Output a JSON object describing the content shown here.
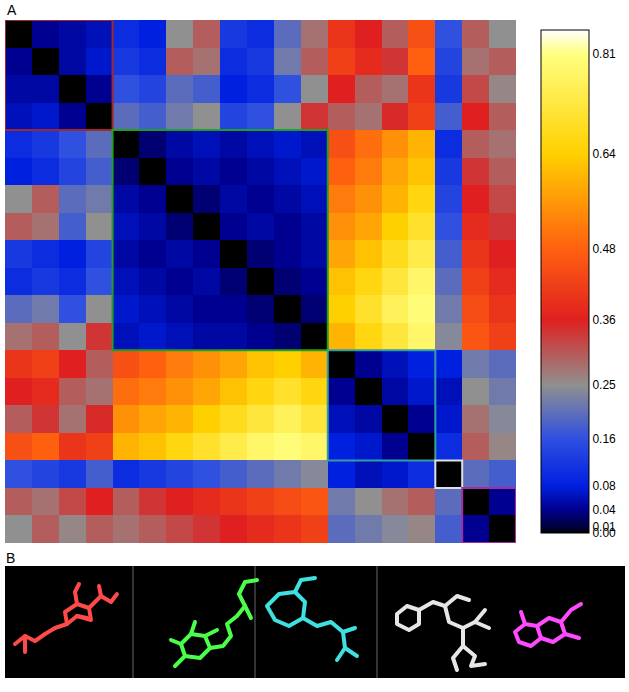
{
  "chart_data": {
    "type": "heatmap",
    "annotations": [
      "A",
      "B"
    ],
    "tick_labels": false,
    "cells": [
      [
        0.0,
        0.04,
        0.05,
        0.06,
        0.1,
        0.08,
        0.25,
        0.3,
        0.12,
        0.1,
        0.2,
        0.28,
        0.4,
        0.36,
        0.3,
        0.45,
        0.16,
        0.3,
        0.25
      ],
      [
        0.04,
        0.0,
        0.05,
        0.07,
        0.12,
        0.1,
        0.3,
        0.28,
        0.1,
        0.12,
        0.22,
        0.3,
        0.42,
        0.38,
        0.34,
        0.48,
        0.14,
        0.28,
        0.3
      ],
      [
        0.05,
        0.05,
        0.0,
        0.04,
        0.16,
        0.14,
        0.2,
        0.18,
        0.08,
        0.1,
        0.16,
        0.25,
        0.36,
        0.3,
        0.28,
        0.4,
        0.12,
        0.32,
        0.26
      ],
      [
        0.06,
        0.07,
        0.04,
        0.0,
        0.2,
        0.18,
        0.22,
        0.25,
        0.14,
        0.16,
        0.25,
        0.34,
        0.3,
        0.28,
        0.35,
        0.42,
        0.18,
        0.36,
        0.3
      ],
      [
        0.1,
        0.12,
        0.16,
        0.2,
        0.0,
        0.03,
        0.05,
        0.06,
        0.05,
        0.06,
        0.07,
        0.06,
        0.45,
        0.5,
        0.55,
        0.6,
        0.1,
        0.3,
        0.28
      ],
      [
        0.08,
        0.1,
        0.14,
        0.18,
        0.03,
        0.0,
        0.04,
        0.05,
        0.04,
        0.05,
        0.06,
        0.07,
        0.48,
        0.52,
        0.58,
        0.62,
        0.12,
        0.34,
        0.3
      ],
      [
        0.25,
        0.3,
        0.2,
        0.22,
        0.05,
        0.04,
        0.0,
        0.03,
        0.05,
        0.04,
        0.05,
        0.06,
        0.52,
        0.55,
        0.6,
        0.66,
        0.14,
        0.36,
        0.32
      ],
      [
        0.3,
        0.28,
        0.18,
        0.25,
        0.06,
        0.05,
        0.03,
        0.0,
        0.04,
        0.05,
        0.04,
        0.05,
        0.55,
        0.58,
        0.64,
        0.7,
        0.16,
        0.38,
        0.34
      ],
      [
        0.12,
        0.1,
        0.08,
        0.14,
        0.05,
        0.04,
        0.05,
        0.04,
        0.0,
        0.03,
        0.04,
        0.05,
        0.58,
        0.62,
        0.68,
        0.74,
        0.18,
        0.4,
        0.36
      ],
      [
        0.1,
        0.12,
        0.1,
        0.16,
        0.06,
        0.05,
        0.04,
        0.05,
        0.03,
        0.0,
        0.03,
        0.04,
        0.62,
        0.66,
        0.72,
        0.78,
        0.2,
        0.42,
        0.38
      ],
      [
        0.2,
        0.22,
        0.16,
        0.25,
        0.07,
        0.06,
        0.05,
        0.04,
        0.04,
        0.03,
        0.0,
        0.03,
        0.64,
        0.7,
        0.76,
        0.8,
        0.22,
        0.44,
        0.4
      ],
      [
        0.28,
        0.3,
        0.25,
        0.34,
        0.06,
        0.07,
        0.06,
        0.05,
        0.05,
        0.04,
        0.03,
        0.0,
        0.6,
        0.66,
        0.72,
        0.78,
        0.24,
        0.46,
        0.42
      ],
      [
        0.4,
        0.42,
        0.36,
        0.3,
        0.45,
        0.48,
        0.52,
        0.55,
        0.58,
        0.62,
        0.64,
        0.6,
        0.0,
        0.04,
        0.06,
        0.08,
        0.08,
        0.22,
        0.2
      ],
      [
        0.36,
        0.38,
        0.3,
        0.28,
        0.5,
        0.52,
        0.55,
        0.58,
        0.62,
        0.66,
        0.7,
        0.66,
        0.04,
        0.0,
        0.05,
        0.07,
        0.06,
        0.25,
        0.22
      ],
      [
        0.3,
        0.34,
        0.28,
        0.35,
        0.55,
        0.58,
        0.6,
        0.64,
        0.68,
        0.72,
        0.76,
        0.72,
        0.06,
        0.05,
        0.0,
        0.04,
        0.07,
        0.28,
        0.24
      ],
      [
        0.45,
        0.48,
        0.4,
        0.42,
        0.6,
        0.62,
        0.66,
        0.7,
        0.74,
        0.78,
        0.8,
        0.78,
        0.08,
        0.07,
        0.04,
        0.0,
        0.1,
        0.3,
        0.26
      ],
      [
        0.16,
        0.14,
        0.12,
        0.18,
        0.1,
        0.12,
        0.14,
        0.16,
        0.18,
        0.2,
        0.22,
        0.24,
        0.08,
        0.06,
        0.07,
        0.1,
        0.0,
        0.2,
        0.18
      ],
      [
        0.3,
        0.28,
        0.32,
        0.36,
        0.3,
        0.34,
        0.36,
        0.38,
        0.4,
        0.42,
        0.44,
        0.46,
        0.22,
        0.25,
        0.28,
        0.3,
        0.2,
        0.0,
        0.04
      ],
      [
        0.25,
        0.3,
        0.26,
        0.3,
        0.28,
        0.3,
        0.32,
        0.34,
        0.36,
        0.38,
        0.4,
        0.42,
        0.2,
        0.22,
        0.24,
        0.26,
        0.18,
        0.04,
        0.0
      ]
    ],
    "zlim": [
      0,
      0.85
    ],
    "zticks": [
      {
        "value": 0,
        "label": "0.00"
      },
      0.01,
      0.04,
      0.08,
      0.16,
      0.25,
      0.36,
      0.48,
      0.64,
      0.81
    ],
    "clusters": [
      {
        "start": 0,
        "end": 3,
        "color": "#a02828"
      },
      {
        "start": 4,
        "end": 11,
        "color": "#20a020"
      },
      {
        "start": 12,
        "end": 15,
        "color": "#30a0a0"
      },
      {
        "start": 16,
        "end": 16,
        "color": "#e0e0e0"
      },
      {
        "start": 17,
        "end": 18,
        "color": "#a030a0"
      }
    ]
  }
}
